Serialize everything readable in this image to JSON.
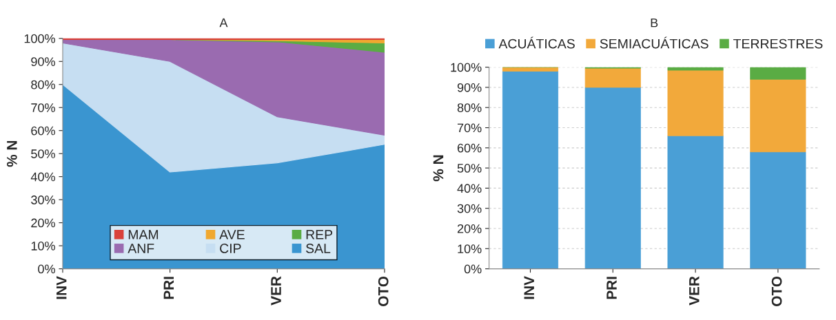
{
  "chart_data": [
    {
      "type": "area",
      "title": "A",
      "ylabel": "% N",
      "stacked": true,
      "categories": [
        "INV",
        "PRI",
        "VER",
        "OTO"
      ],
      "series": [
        {
          "name": "SAL",
          "color": "#3a95d0",
          "values": [
            80,
            42,
            46,
            54
          ]
        },
        {
          "name": "CIP",
          "color": "#c6def2",
          "values": [
            18,
            48,
            20,
            4
          ]
        },
        {
          "name": "ANF",
          "color": "#9a6bb0",
          "values": [
            1.5,
            9.5,
            32.5,
            36
          ]
        },
        {
          "name": "REP",
          "color": "#5aac44",
          "values": [
            0,
            0,
            0.5,
            4
          ]
        },
        {
          "name": "AVE",
          "color": "#f0a830",
          "values": [
            0,
            0,
            0.5,
            1.5
          ]
        },
        {
          "name": "MAM",
          "color": "#d9413a",
          "values": [
            0.5,
            0.5,
            0.5,
            0.5
          ]
        }
      ],
      "ylim": [
        0,
        100
      ],
      "yticks": [
        {
          "value": 0,
          "label": "0%"
        },
        {
          "value": 10,
          "label": "10%"
        },
        {
          "value": 20,
          "label": "20%"
        },
        {
          "value": 30,
          "label": "30%"
        },
        {
          "value": 40,
          "label": "40%"
        },
        {
          "value": 50,
          "label": "50%"
        },
        {
          "value": 60,
          "label": "60%"
        },
        {
          "value": 70,
          "label": "70%"
        },
        {
          "value": 80,
          "label": "80%"
        },
        {
          "value": 90,
          "label": "90%"
        },
        {
          "value": 100,
          "label": "100%"
        }
      ],
      "grid": false,
      "legend": "bottom"
    },
    {
      "type": "bar",
      "title": "B",
      "ylabel": "% N",
      "stacked": true,
      "categories": [
        "INV",
        "PRI",
        "VER",
        "OTO"
      ],
      "series": [
        {
          "name": "ACUÁTICAS",
          "color": "#4a9fd6",
          "values": [
            98,
            90,
            66,
            58
          ]
        },
        {
          "name": "SEMIACUÁTICAS",
          "color": "#f2a93b",
          "values": [
            2,
            9.5,
            32.5,
            36
          ]
        },
        {
          "name": "TERRESTRES",
          "color": "#5aac44",
          "values": [
            0,
            0.5,
            1.5,
            6
          ]
        }
      ],
      "ylim": [
        0,
        100
      ],
      "yticks": [
        {
          "value": 0,
          "label": "0%"
        },
        {
          "value": 10,
          "label": "10%"
        },
        {
          "value": 20,
          "label": "20%"
        },
        {
          "value": 30,
          "label": "30%"
        },
        {
          "value": 40,
          "label": "40%"
        },
        {
          "value": 50,
          "label": "50%"
        },
        {
          "value": 60,
          "label": "60%"
        },
        {
          "value": 70,
          "label": "70%"
        },
        {
          "value": 80,
          "label": "80%"
        },
        {
          "value": 90,
          "label": "90%"
        },
        {
          "value": 100,
          "label": "100%"
        }
      ],
      "grid": "y",
      "legend": "top"
    }
  ]
}
